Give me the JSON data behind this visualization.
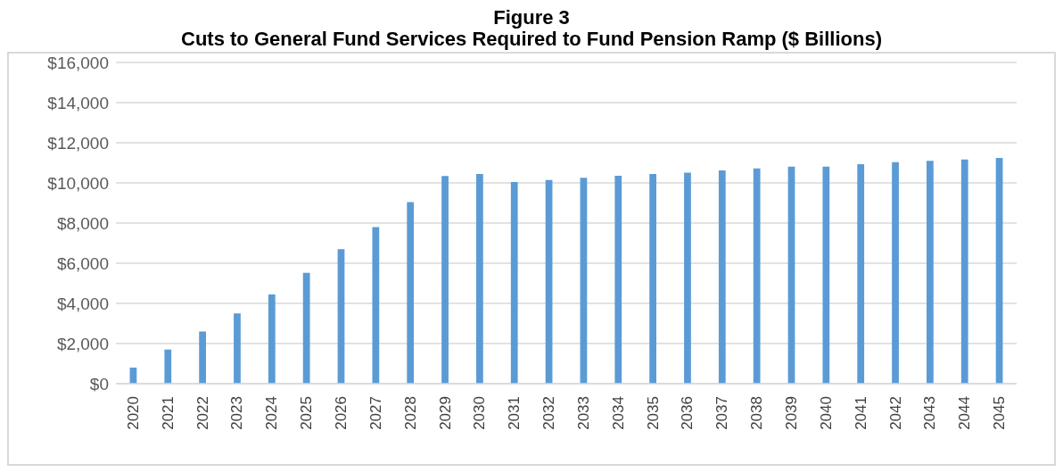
{
  "chart_data": {
    "type": "bar",
    "title": "Figure 3",
    "subtitle": "Cuts to General Fund Services Required to Fund Pension Ramp ($ Billions)",
    "categories": [
      "2020",
      "2021",
      "2022",
      "2023",
      "2024",
      "2025",
      "2026",
      "2027",
      "2028",
      "2029",
      "2030",
      "2031",
      "2032",
      "2033",
      "2034",
      "2035",
      "2036",
      "2037",
      "2038",
      "2039",
      "2040",
      "2041",
      "2042",
      "2043",
      "2044",
      "2045"
    ],
    "values": [
      800,
      1700,
      2600,
      3500,
      4450,
      5520,
      6700,
      7800,
      9050,
      10350,
      10450,
      10050,
      10140,
      10260,
      10360,
      10450,
      10510,
      10620,
      10720,
      10810,
      10810,
      10930,
      11030,
      11100,
      11170,
      11240
    ],
    "color": "#5b9bd5",
    "ylim": [
      0,
      16000
    ],
    "yticks": [
      {
        "value": 0,
        "label": "$0"
      },
      {
        "value": 2000,
        "label": "$2,000"
      },
      {
        "value": 4000,
        "label": "$4,000"
      },
      {
        "value": 6000,
        "label": "$6,000"
      },
      {
        "value": 8000,
        "label": "$8,000"
      },
      {
        "value": 10000,
        "label": "$10,000"
      },
      {
        "value": 12000,
        "label": "$12,000"
      },
      {
        "value": 14000,
        "label": "$14,000"
      },
      {
        "value": 16000,
        "label": "$16,000"
      }
    ],
    "grid": "y"
  }
}
